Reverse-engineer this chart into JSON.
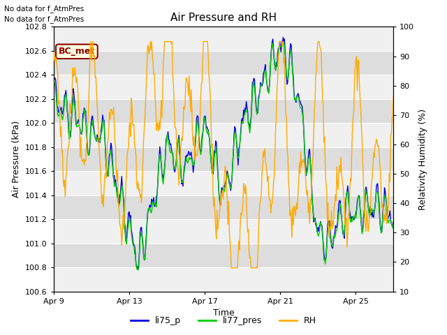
{
  "title": "Air Pressure and RH",
  "xlabel": "Time",
  "ylabel_left": "Air Pressure (kPa)",
  "ylabel_right": "Relativity Humidity (%)",
  "top_text1": "No data for f_AtmPres",
  "top_text2": "No data for f_AtmPres",
  "box_label": "BC_met",
  "ylim_left": [
    100.6,
    102.8
  ],
  "ylim_right": [
    10,
    100
  ],
  "yticks_left": [
    100.6,
    100.8,
    101.0,
    101.2,
    101.4,
    101.6,
    101.8,
    102.0,
    102.2,
    102.4,
    102.6,
    102.8
  ],
  "yticks_right": [
    10,
    20,
    30,
    40,
    50,
    60,
    70,
    80,
    90,
    100
  ],
  "xtick_labels": [
    "Apr 9",
    "Apr 13",
    "Apr 17",
    "Apr 21",
    "Apr 25"
  ],
  "xtick_positions": [
    0,
    4,
    8,
    12,
    16
  ],
  "xlim": [
    0,
    18
  ],
  "color_li75": "#0000dd",
  "color_li77": "#00cc00",
  "color_rh": "#ffaa00",
  "legend_labels": [
    "li75_p",
    "li77_pres",
    "RH"
  ],
  "background_plot": "#dddddd",
  "background_stripe": "#f0f0f0",
  "grid_color": "#ffffff",
  "figsize": [
    6.4,
    4.8
  ],
  "dpi": 100
}
